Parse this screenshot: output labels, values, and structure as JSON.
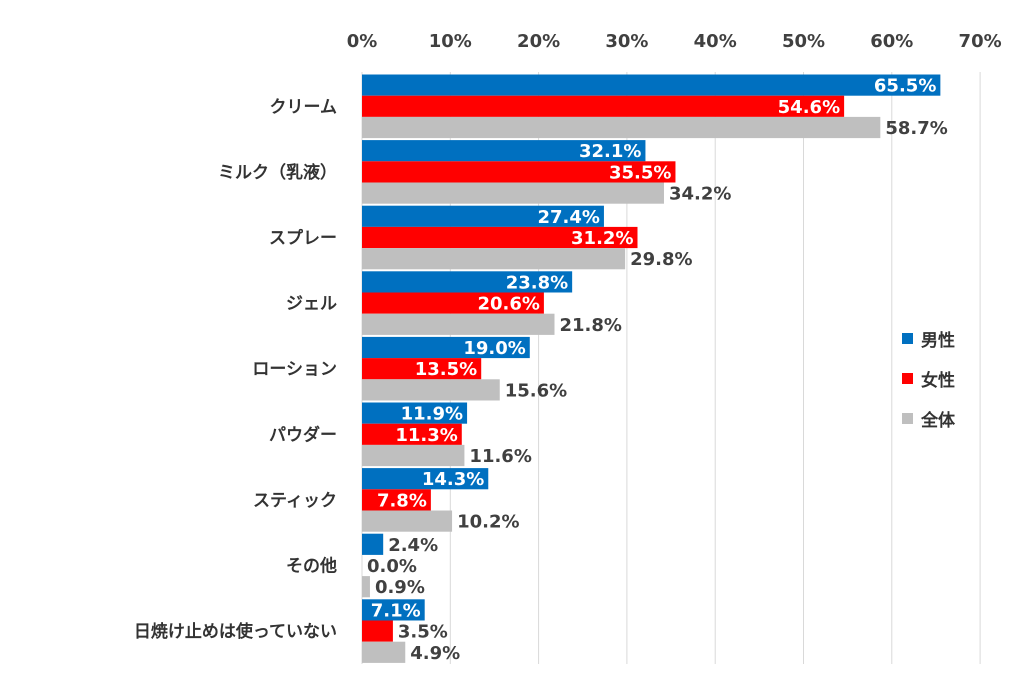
{
  "chart_data": {
    "type": "bar",
    "orientation": "horizontal",
    "categories": [
      "クリーム",
      "ミルク（乳液）",
      "スプレー",
      "ジェル",
      "ローション",
      "パウダー",
      "スティック",
      "その他",
      "日焼け止めは使っていない"
    ],
    "series": [
      {
        "name": "男性",
        "color": "#0070C0",
        "values": [
          65.5,
          32.1,
          27.4,
          23.8,
          19.0,
          11.9,
          14.3,
          2.4,
          7.1
        ],
        "labels": [
          "65.5%",
          "32.1%",
          "27.4%",
          "23.8%",
          "19.0%",
          "11.9%",
          "14.3%",
          "2.4%",
          "7.1%"
        ]
      },
      {
        "name": "女性",
        "color": "#FF0000",
        "values": [
          54.6,
          35.5,
          31.2,
          20.6,
          13.5,
          11.3,
          7.8,
          0.0,
          3.5
        ],
        "labels": [
          "54.6%",
          "35.5%",
          "31.2%",
          "20.6%",
          "13.5%",
          "11.3%",
          "7.8%",
          "0.0%",
          "3.5%"
        ]
      },
      {
        "name": "全体",
        "color": "#BFBFBF",
        "values": [
          58.7,
          34.2,
          29.8,
          21.8,
          15.6,
          11.6,
          10.2,
          0.9,
          4.9
        ],
        "labels": [
          "58.7%",
          "34.2%",
          "29.8%",
          "21.8%",
          "15.6%",
          "11.6%",
          "10.2%",
          "0.9%",
          "4.9%"
        ]
      }
    ],
    "xlim": [
      0,
      70
    ],
    "xticks": [
      "0%",
      "10%",
      "20%",
      "30%",
      "40%",
      "50%",
      "60%",
      "70%"
    ],
    "xaxis_position": "top",
    "grid": true,
    "legend_position": "right",
    "title": "",
    "xlabel": "",
    "ylabel": ""
  }
}
